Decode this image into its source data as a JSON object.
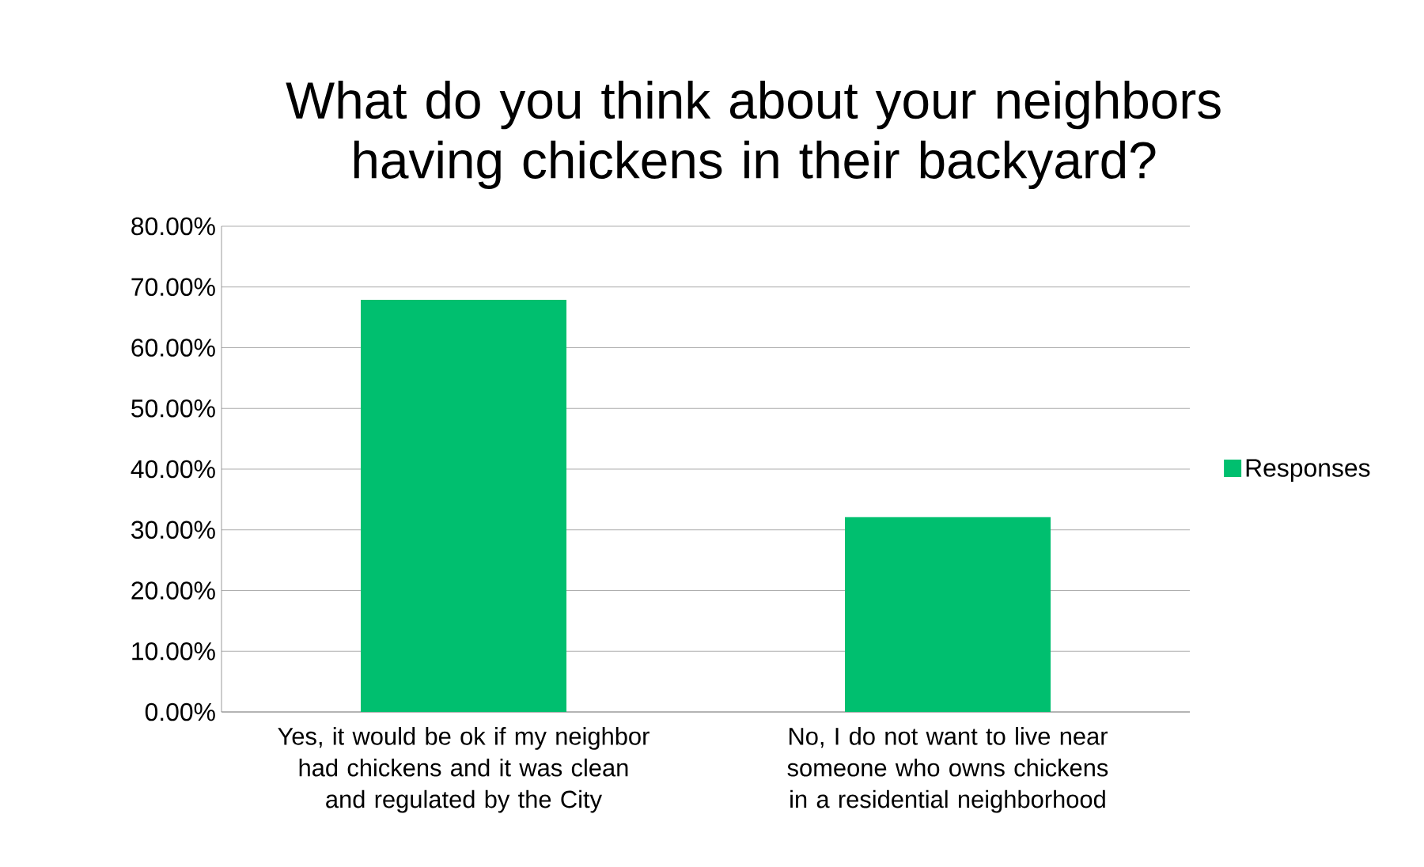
{
  "chart_data": {
    "type": "bar",
    "title": "What do you think about your neighbors having chickens in their backyard?",
    "categories": [
      "Yes, it would be ok if my neighbor had chickens and it was clean and regulated by the City",
      "No, I do not want to live near someone who owns chickens in a residential neighborhood"
    ],
    "series": [
      {
        "name": "Responses",
        "color": "#00bf6f",
        "values": [
          67.9,
          32.1
        ]
      }
    ],
    "ylim": [
      0,
      80
    ],
    "yticks": [
      {
        "value": 0,
        "label": "0.00%"
      },
      {
        "value": 10,
        "label": "10.00%"
      },
      {
        "value": 20,
        "label": "20.00%"
      },
      {
        "value": 30,
        "label": "30.00%"
      },
      {
        "value": 40,
        "label": "40.00%"
      },
      {
        "value": 50,
        "label": "50.00%"
      },
      {
        "value": 60,
        "label": "60.00%"
      },
      {
        "value": 70,
        "label": "70.00%"
      },
      {
        "value": 80,
        "label": "80.00%"
      }
    ],
    "grid": "y",
    "legend": "right"
  }
}
